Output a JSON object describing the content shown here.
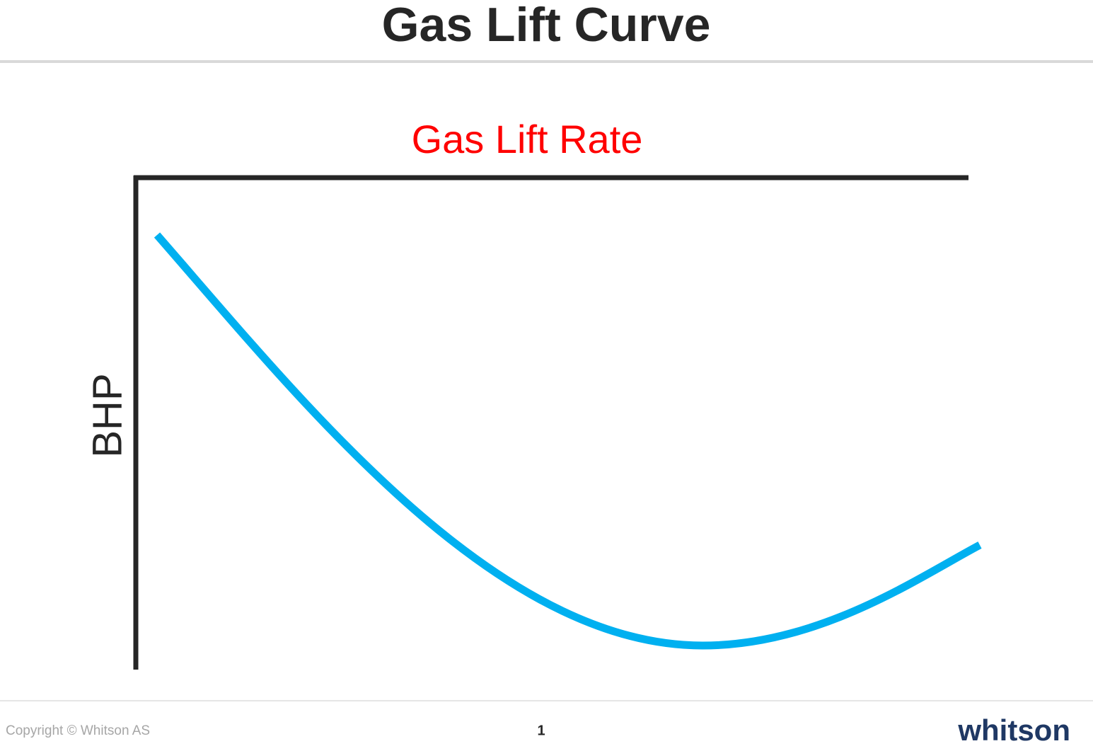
{
  "header": {
    "title": "Gas Lift Curve"
  },
  "diagram": {
    "x_axis_label": "Gas Lift Rate",
    "y_axis_label": "BHP"
  },
  "footer": {
    "copyright": "Copyright © Whitson AS",
    "page_number": "1",
    "logo": "whitson"
  }
}
